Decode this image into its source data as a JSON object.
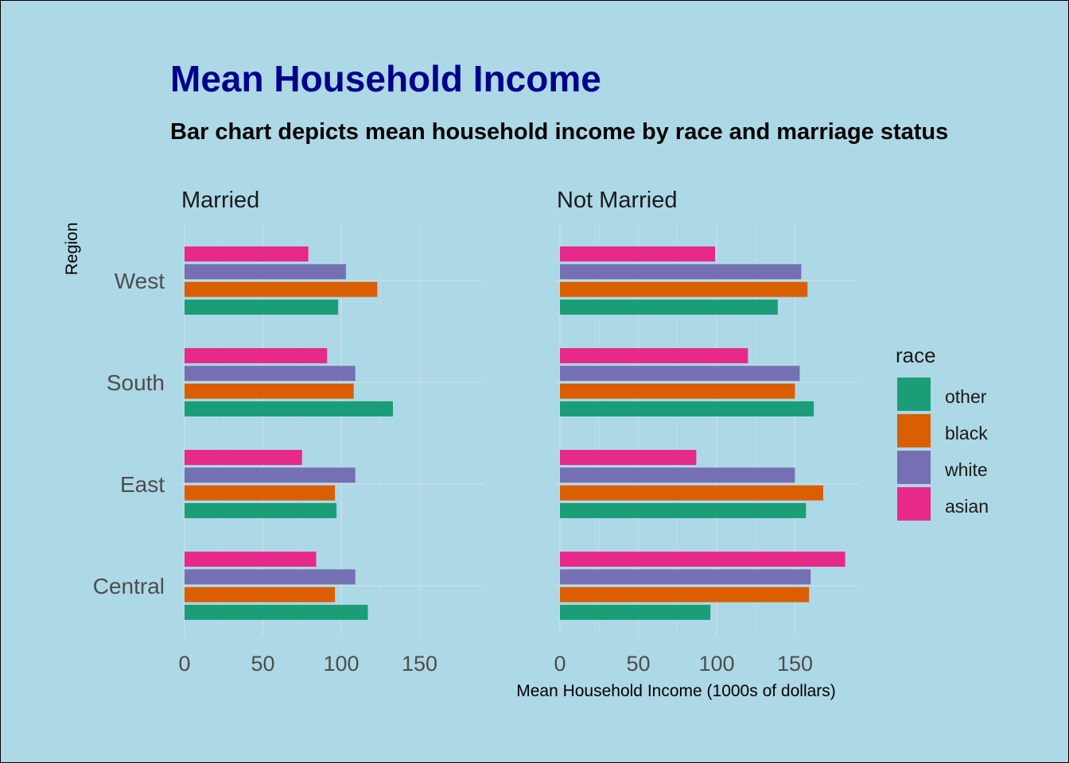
{
  "title": "Mean Household Income",
  "subtitle": "Bar chart depicts mean household income by race and marriage status",
  "chart_data": {
    "type": "bar",
    "orientation": "horizontal",
    "facet_by": "marriage status",
    "panels": [
      {
        "name": "Married"
      },
      {
        "name": "Not Married"
      }
    ],
    "categories": [
      "Central",
      "East",
      "South",
      "West"
    ],
    "xlabel": "Mean Household Income (1000s of dollars)",
    "ylabel": "Region",
    "xlim": [
      0,
      190
    ],
    "xticks": [
      0,
      50,
      100,
      150
    ],
    "grid": true,
    "legend_title": "race",
    "legend_position": "right",
    "series": [
      {
        "name": "other",
        "color": "#1b9e77",
        "values": {
          "Married": [
            117,
            97,
            133,
            98
          ],
          "Not Married": [
            96,
            157,
            162,
            139
          ]
        }
      },
      {
        "name": "black",
        "color": "#d95f02",
        "values": {
          "Married": [
            96,
            96,
            108,
            123
          ],
          "Not Married": [
            159,
            168,
            150,
            158
          ]
        }
      },
      {
        "name": "white",
        "color": "#7570b3",
        "values": {
          "Married": [
            109,
            109,
            109,
            103
          ],
          "Not Married": [
            160,
            150,
            153,
            154
          ]
        }
      },
      {
        "name": "asian",
        "color": "#e7298a",
        "values": {
          "Married": [
            84,
            75,
            91,
            79
          ],
          "Not Married": [
            182,
            87,
            120,
            99
          ]
        }
      }
    ]
  }
}
